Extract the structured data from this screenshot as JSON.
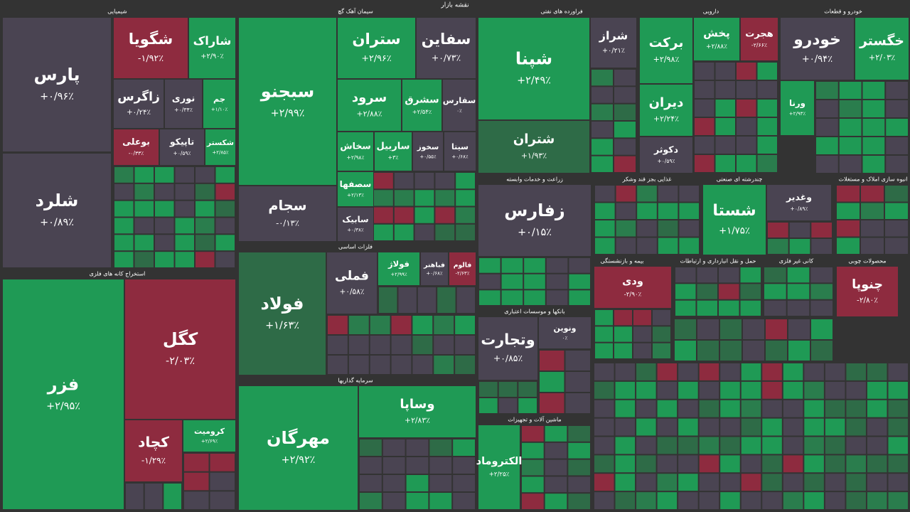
{
  "title": "نقشه بازار",
  "sectors": [
    {
      "title": "شیمیایی",
      "tiles": [
        {
          "name": "پارس",
          "change": "+۰/۹۶٪"
        },
        {
          "name": "شلرد",
          "change": "+۰/۸۹٪"
        },
        {
          "name": "شگویا",
          "change": "-۱/۹۲٪"
        },
        {
          "name": "شاراک",
          "change": "+۲/۹۰٪"
        },
        {
          "name": "زاگرس",
          "change": "+۰/۲۴٪"
        },
        {
          "name": "نوری",
          "change": "+۰/۳۴٪"
        },
        {
          "name": "جم",
          "change": "+۱/۱۰٪"
        },
        {
          "name": "بوعلی",
          "change": "-۰/۳۳٪"
        },
        {
          "name": "تاپیکو",
          "change": "+۰/۵۹٪"
        },
        {
          "name": "شکستر",
          "change": "+۲/۸۵٪"
        }
      ]
    },
    {
      "title": "استخراج کانه های فلزی",
      "tiles": [
        {
          "name": "فزر",
          "change": "+۲/۹۵٪"
        },
        {
          "name": "کگل",
          "change": "-۲/۰۳٪"
        },
        {
          "name": "کچاد",
          "change": "-۱/۲۹٪"
        },
        {
          "name": "کرومیت",
          "change": "+۲/۶۹٪"
        }
      ]
    },
    {
      "title": "سیمان آهک گچ",
      "tiles": [
        {
          "name": "سبجنو",
          "change": "+۲/۹۹٪"
        },
        {
          "name": "ستران",
          "change": "+۲/۹۶٪"
        },
        {
          "name": "سفاین",
          "change": "+۰/۷۳٪"
        },
        {
          "name": "سرود",
          "change": "+۲/۸۸٪"
        },
        {
          "name": "سشرق",
          "change": "+۲/۵۴٪"
        },
        {
          "name": "سفارس",
          "change": "۰٪"
        },
        {
          "name": "سجام",
          "change": "-۰/۱۳٪"
        },
        {
          "name": "سخاش",
          "change": "+۲/۹۸٪"
        },
        {
          "name": "ساربیل",
          "change": "+۳٪"
        },
        {
          "name": "سخوز",
          "change": "+۰/۵۵٪"
        },
        {
          "name": "سیتا",
          "change": "+۰/۶۸٪"
        },
        {
          "name": "سصفها",
          "change": "+۲/۱۳٪"
        },
        {
          "name": "سابیک",
          "change": "+۰/۳۸٪"
        }
      ]
    },
    {
      "title": "فلزات اساسی",
      "tiles": [
        {
          "name": "فولاد",
          "change": "+۱/۶۳٪"
        },
        {
          "name": "فملی",
          "change": "+۰/۵۸٪"
        },
        {
          "name": "فولاژ",
          "change": "+۲/۹۹٪"
        },
        {
          "name": "فباهنر",
          "change": "+۰/۶۸٪"
        },
        {
          "name": "فالوم",
          "change": "-۲/۶۳٪"
        }
      ]
    },
    {
      "title": "سرمایه گذاریها",
      "tiles": [
        {
          "name": "مهرگان",
          "change": "+۲/۹۲٪"
        },
        {
          "name": "وساپا",
          "change": "+۲/۸۳٪"
        }
      ]
    },
    {
      "title": "فراورده های نفتی",
      "tiles": [
        {
          "name": "شپنا",
          "change": "+۲/۴۹٪"
        },
        {
          "name": "شتران",
          "change": "+۱/۹۳٪"
        },
        {
          "name": "شراز",
          "change": "+۰/۲۱٪"
        }
      ]
    },
    {
      "title": "زراعت و خدمات وابسته",
      "tiles": [
        {
          "name": "زفارس",
          "change": "+۰/۱۵٪"
        }
      ]
    },
    {
      "title": "بانکها و موسسات اعتباری",
      "tiles": [
        {
          "name": "وتجارت",
          "change": "+۰/۸۵٪"
        },
        {
          "name": "ونوین",
          "change": "۰٪"
        }
      ]
    },
    {
      "title": "ماشین آلات و تجهیزات",
      "tiles": [
        {
          "name": "الکتروماد",
          "change": "+۲/۲۵٪"
        }
      ]
    },
    {
      "title": "دارویی",
      "tiles": [
        {
          "name": "برکت",
          "change": "+۲/۹۸٪"
        },
        {
          "name": "پخش",
          "change": "+۲/۸۸٪"
        },
        {
          "name": "هجرت",
          "change": "-۲/۶۶٪"
        },
        {
          "name": "دیران",
          "change": "+۲/۲۴٪"
        },
        {
          "name": "دکوثر",
          "change": "+۰/۵۹٪"
        }
      ]
    },
    {
      "title": "خودرو و قطعات",
      "tiles": [
        {
          "name": "خودرو",
          "change": "+۰/۹۴٪"
        },
        {
          "name": "خگستر",
          "change": "+۲/۰۳٪"
        },
        {
          "name": "ورنا",
          "change": "+۲/۹۳٪"
        }
      ]
    },
    {
      "title": "غذایی بجز قند وشکر",
      "tiles": []
    },
    {
      "title": "چندرشته ای صنعتی",
      "tiles": [
        {
          "name": "شستا",
          "change": "+۱/۷۵٪"
        },
        {
          "name": "وغدیر",
          "change": "+۰/۸۹٪"
        }
      ]
    },
    {
      "title": "انبوه سازی املاک و مستغلات",
      "tiles": []
    },
    {
      "title": "بیمه و بازنشستگی",
      "tiles": [
        {
          "name": "ودی",
          "change": "-۲/۹۰٪"
        }
      ]
    },
    {
      "title": "حمل و نقل انبارداری و ارتباطات",
      "tiles": []
    },
    {
      "title": "کانی غیر فلزی",
      "tiles": []
    },
    {
      "title": "محصولات چوبی",
      "tiles": [
        {
          "name": "چنوپا",
          "change": "-۲/۸۰٪"
        }
      ]
    }
  ]
}
